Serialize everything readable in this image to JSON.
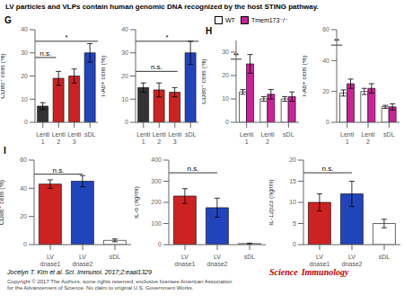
{
  "title": "LV particles and VLPs contain human genomic DNA recognized by the host STING pathway.",
  "annotations": [
    "Jocelyn T. Kim et al. Sci. Immunol. 2017;2:eaal1329",
    "Copyright © 2017 The Authors, some rights reserved; exclusive licensee American Association\nfor the Advancement of Science. No claim to original U.S. Government Works.",
    "Science",
    "Immunology"
  ],
  "chart_data": [
    {
      "type": "bar",
      "title": "G",
      "ylabel": "CD86⁺ cells (%)",
      "categories": [
        "Lenti\n1",
        "Lenti\n2",
        "Lenti\n3",
        "sDL"
      ],
      "values": [
        7,
        19,
        20,
        30
      ],
      "errors": [
        1.5,
        3,
        3,
        4
      ],
      "colors": [
        "#333333",
        "#cc2222",
        "#cc2222",
        "#2244bb"
      ],
      "ylim": [
        0,
        40
      ],
      "yticks": [
        0,
        10,
        20,
        30,
        40
      ],
      "annotations": [
        {
          "text": "*",
          "from": "Lenti\n1",
          "to": "sDL",
          "y": 35
        },
        {
          "text": "n.s.",
          "from": "Lenti\n1",
          "to": "Lenti\n2",
          "y": 28
        }
      ]
    },
    {
      "type": "bar",
      "ylabel": "I-Ab+ cells (%)",
      "categories": [
        "Lenti\n1",
        "Lenti\n2",
        "Lenti\n3",
        "sDL"
      ],
      "values": [
        15,
        14,
        13,
        30
      ],
      "errors": [
        2,
        3,
        2,
        5
      ],
      "colors": [
        "#333333",
        "#cc2222",
        "#cc2222",
        "#2244bb"
      ],
      "ylim": [
        0,
        40
      ],
      "yticks": [
        0,
        10,
        20,
        30,
        40
      ],
      "annotations": [
        {
          "text": "*",
          "from": "Lenti\n1",
          "to": "sDL",
          "y": 35
        },
        {
          "text": "n.s.",
          "from": "Lenti\n1",
          "to": "Lenti\n3",
          "y": 22
        }
      ]
    },
    {
      "type": "bar",
      "title": "H",
      "ylabel": "CD86⁺ cells (%)",
      "categories": [
        "Lenti\n1",
        "Lenti\n2",
        "sDL"
      ],
      "series": [
        {
          "name": "WT",
          "color": "#ffffff",
          "values": [
            13,
            10,
            10
          ],
          "errors": [
            1,
            1,
            1
          ]
        },
        {
          "name": "Tmem173⁻/⁻",
          "color": "#cc2299",
          "values": [
            25,
            12,
            11
          ],
          "errors": [
            4,
            2,
            2
          ]
        }
      ],
      "ylim": [
        0,
        35
      ],
      "yticks": [
        0,
        10,
        20,
        30
      ],
      "legend": "upper left",
      "annotations": [
        {
          "text": "**",
          "category": "Lenti\n1",
          "y": 27
        }
      ]
    },
    {
      "type": "bar",
      "ylabel": "I-Ab+ cells (%)",
      "categories": [
        "Lenti\n1",
        "Lenti\n2",
        "sDL"
      ],
      "series": [
        {
          "name": "WT",
          "color": "#ffffff",
          "values": [
            19,
            20,
            10
          ],
          "errors": [
            2,
            2,
            1
          ]
        },
        {
          "name": "Tmem173⁻/⁻",
          "color": "#cc2299",
          "values": [
            25,
            22,
            10
          ],
          "errors": [
            3,
            3,
            2
          ]
        }
      ],
      "ylim": [
        0,
        60
      ],
      "yticks": [
        0,
        20,
        40,
        60
      ],
      "annotations": [
        {
          "text": "**",
          "category": "Lenti\n1",
          "y": 50
        }
      ]
    },
    {
      "type": "bar",
      "title": "I",
      "ylabel": "CD86⁺ cells (%)",
      "categories": [
        "LV\ndnase1",
        "LV\ndnase2",
        "sDL"
      ],
      "values": [
        43,
        45,
        3
      ],
      "errors": [
        3,
        4,
        1
      ],
      "colors": [
        "#cc2222",
        "#2244bb",
        "#ffffff"
      ],
      "ylim": [
        0,
        60
      ],
      "yticks": [
        0,
        20,
        40,
        60
      ],
      "annotations": [
        {
          "text": "n.s.",
          "from": "LV\ndnase1",
          "to": "LV\ndnase2",
          "y": 50
        }
      ]
    },
    {
      "type": "bar",
      "ylabel": "IL-6 (ng/ml)",
      "categories": [
        "LV\ndnase1",
        "LV\ndnase2",
        "sDL"
      ],
      "values": [
        230,
        175,
        5
      ],
      "errors": [
        35,
        45,
        2
      ],
      "colors": [
        "#cc2222",
        "#2244bb",
        "#ffffff"
      ],
      "ylim": [
        0,
        400
      ],
      "yticks": [
        0,
        100,
        200,
        300,
        400
      ],
      "annotations": [
        {
          "text": "n.s.",
          "from": "LV\ndnase1",
          "to": "LV\ndnase2",
          "y": 340
        }
      ]
    },
    {
      "type": "bar",
      "ylabel": "IL-12p23 (ng/ml)",
      "categories": [
        "LV\ndnase1",
        "LV\ndnase2",
        "sDL"
      ],
      "values": [
        10,
        12,
        5
      ],
      "errors": [
        2,
        3,
        1
      ],
      "colors": [
        "#cc2222",
        "#2244bb",
        "#ffffff"
      ],
      "ylim": [
        0,
        20
      ],
      "yticks": [
        0,
        5,
        10,
        15,
        20
      ],
      "annotations": [
        {
          "text": "n.s.",
          "from": "LV\ndnase1",
          "to": "LV\ndnase2",
          "y": 17
        }
      ]
    }
  ]
}
